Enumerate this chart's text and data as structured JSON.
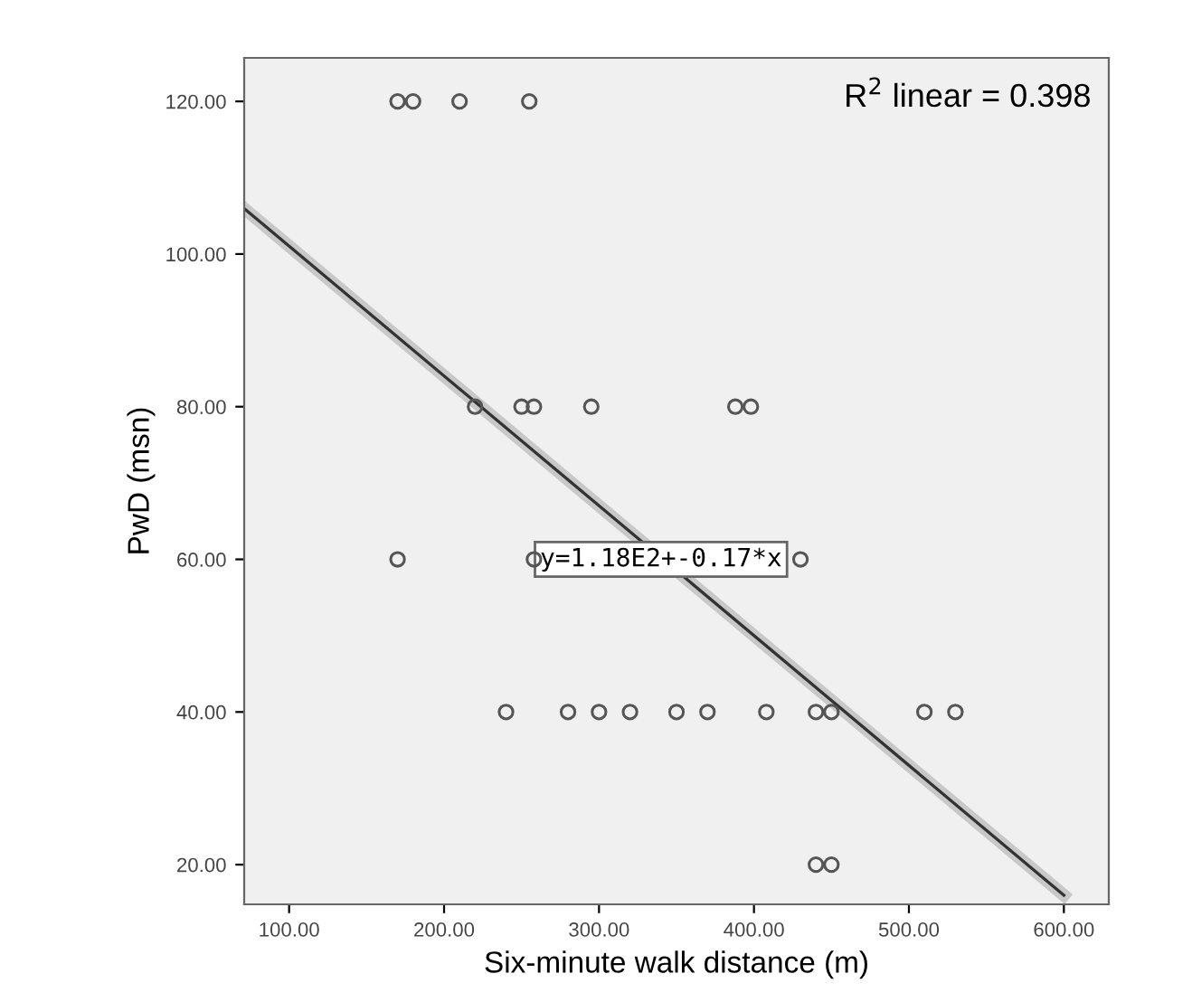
{
  "chart_data": {
    "type": "scatter",
    "xlabel": "Six-minute walk distance (m)",
    "ylabel": "PwD (msn)",
    "series": [
      {
        "color": "#555555",
        "marker": "circle",
        "x": [
          170,
          180,
          210,
          255,
          220,
          250,
          258,
          295,
          388,
          398,
          170,
          258,
          430,
          240,
          280,
          300,
          320,
          350,
          370,
          408,
          440,
          450,
          510,
          530,
          440,
          450
        ],
        "values": [
          120,
          120,
          120,
          120,
          80,
          80,
          80,
          80,
          80,
          80,
          60,
          60,
          60,
          40,
          40,
          40,
          40,
          40,
          40,
          40,
          40,
          40,
          40,
          40,
          20,
          20
        ]
      },
      {
        "type": "line",
        "color": "#333333",
        "marker": "none",
        "line_style": "solid",
        "x": [
          72,
          600
        ],
        "values": [
          105.8,
          16.0
        ]
      }
    ],
    "xlim": [
      71,
      629
    ],
    "ylim": [
      14.8,
      125.7
    ],
    "xticks": [
      {
        "value": 100,
        "label": "100.00"
      },
      {
        "value": 200,
        "label": "200.00"
      },
      {
        "value": 300,
        "label": "300.00"
      },
      {
        "value": 400,
        "label": "400.00"
      },
      {
        "value": 500,
        "label": "500.00"
      },
      {
        "value": 600,
        "label": "600.00"
      }
    ],
    "yticks": [
      {
        "value": 20,
        "label": "20.00"
      },
      {
        "value": 40,
        "label": "40.00"
      },
      {
        "value": 60,
        "label": "60.00"
      },
      {
        "value": 80,
        "label": "80.00"
      },
      {
        "value": 100,
        "label": "100.00"
      },
      {
        "value": 120,
        "label": "120.00"
      }
    ],
    "grid": false,
    "legend": false,
    "annotations": [
      "R$^{2}$ linear = 0.398",
      {
        "text": "y=1.18E2+-0.17*x",
        "x": 340,
        "y": 60
      }
    ]
  }
}
